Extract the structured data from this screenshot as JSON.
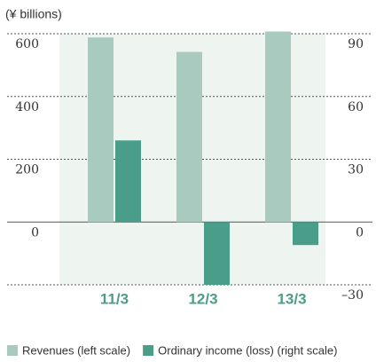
{
  "chart_data": {
    "type": "bar",
    "y_axis_label": "(¥ billions)",
    "categories": [
      "11/3",
      "12/3",
      "13/3"
    ],
    "series": [
      {
        "name": "Revenues (left scale)",
        "color": "#a9cbbf",
        "values": [
          588,
          542,
          607
        ]
      },
      {
        "name": "Ordinary income (loss) (right scale)",
        "color": "#4a9d89",
        "values": [
          39,
          -30,
          -11
        ],
        "axis": "y2"
      }
    ],
    "ylim": [
      -200,
      600
    ],
    "yticks": [
      0,
      200,
      400,
      600
    ],
    "y2lim": [
      -30,
      90
    ],
    "y2ticks": [
      {
        "value": -30,
        "label": "–30"
      },
      0,
      30,
      60,
      90
    ],
    "grid": true,
    "legend": "bottom"
  }
}
